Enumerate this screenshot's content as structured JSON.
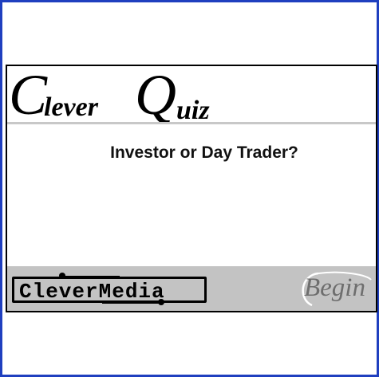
{
  "app": {
    "logo_word_1": "Clever",
    "logo_word_2": "Quiz",
    "quiz_title": "Investor or Day Trader?",
    "brand_name": "CleverMedia",
    "begin_label": "Begin"
  },
  "colors": {
    "window_border": "#1f3fbf",
    "rule": "#c8c8c8",
    "footer": "#c3c3c3",
    "begin_text": "#6e6e6e"
  }
}
